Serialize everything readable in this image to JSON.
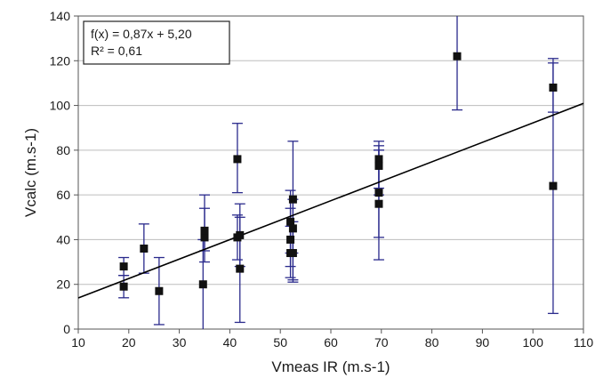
{
  "chart_data": {
    "type": "scatter",
    "title": "",
    "xlabel": "Vmeas IR (m.s-1)",
    "ylabel": "Vcalc  (m.s-1)",
    "xlim": [
      10,
      110
    ],
    "ylim": [
      0,
      140
    ],
    "x_ticks": [
      "10",
      "20",
      "30",
      "40",
      "50",
      "60",
      "70",
      "80",
      "90",
      "100",
      "110"
    ],
    "y_ticks": [
      "0",
      "20",
      "40",
      "60",
      "80",
      "100",
      "120",
      "140"
    ],
    "grid": "horizontal",
    "colors": {
      "marker": "#111111",
      "errorbar": "#2a2a8c",
      "trend": "#000000",
      "grid": "#bdbdbd"
    },
    "annotation": {
      "equation": "f(x) = 0,87x + 5,20",
      "r2": "R² = 0,61",
      "position": "top-left"
    },
    "trendline": {
      "slope": 0.87,
      "intercept": 5.2
    },
    "points": [
      {
        "x": 19,
        "y": 28,
        "err_low": 24,
        "err_high": 32
      },
      {
        "x": 19,
        "y": 19,
        "err_low": 14,
        "err_high": 24
      },
      {
        "x": 23,
        "y": 36,
        "err_low": 25,
        "err_high": 47
      },
      {
        "x": 26,
        "y": 17,
        "err_low": 2,
        "err_high": 32
      },
      {
        "x": 34.7,
        "y": 20,
        "err_low": 0,
        "err_high": 40
      },
      {
        "x": 35,
        "y": 41,
        "err_low": 30,
        "err_high": 60
      },
      {
        "x": 35,
        "y": 44,
        "err_low": 35,
        "err_high": 54
      },
      {
        "x": 41.5,
        "y": 76,
        "err_low": 61,
        "err_high": 92
      },
      {
        "x": 41.5,
        "y": 41,
        "err_low": 31,
        "err_high": 51
      },
      {
        "x": 42,
        "y": 42,
        "err_low": 28,
        "err_high": 56
      },
      {
        "x": 42,
        "y": 27,
        "err_low": 3,
        "err_high": 50
      },
      {
        "x": 52,
        "y": 40,
        "err_low": 28,
        "err_high": 54
      },
      {
        "x": 52,
        "y": 34,
        "err_low": 23,
        "err_high": 46
      },
      {
        "x": 52,
        "y": 48,
        "err_low": 34,
        "err_high": 62
      },
      {
        "x": 52.5,
        "y": 58,
        "err_low": 34,
        "err_high": 84
      },
      {
        "x": 52.5,
        "y": 45,
        "err_low": 22,
        "err_high": 58
      },
      {
        "x": 52.5,
        "y": 34,
        "err_low": 21,
        "err_high": 48
      },
      {
        "x": 69.5,
        "y": 76,
        "err_low": 63,
        "err_high": 84
      },
      {
        "x": 69.5,
        "y": 73,
        "err_low": 60,
        "err_high": 82
      },
      {
        "x": 69.5,
        "y": 61,
        "err_low": 41,
        "err_high": 80
      },
      {
        "x": 69.5,
        "y": 56,
        "err_low": 31,
        "err_high": 80
      },
      {
        "x": 85,
        "y": 122,
        "err_low": 98,
        "err_high": 140
      },
      {
        "x": 104,
        "y": 108,
        "err_low": 97,
        "err_high": 121
      },
      {
        "x": 104,
        "y": 64,
        "err_low": 7,
        "err_high": 119
      }
    ]
  }
}
